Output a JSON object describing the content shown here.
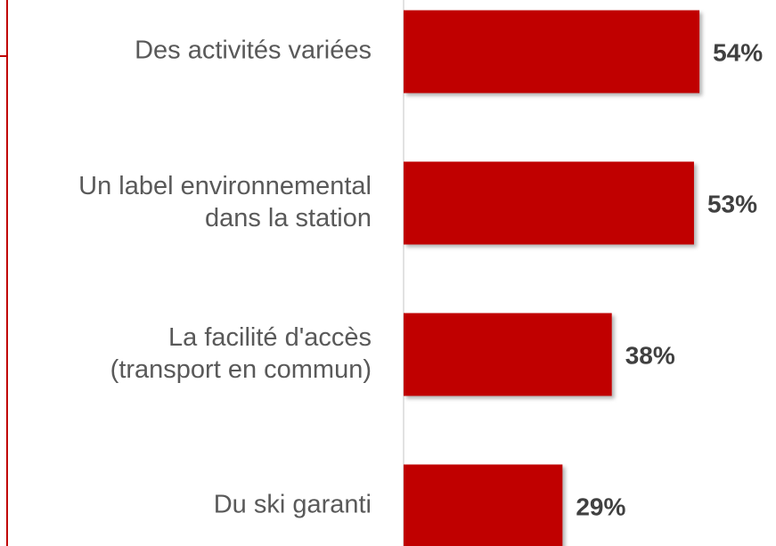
{
  "chart_data": {
    "type": "bar",
    "orientation": "horizontal",
    "categories": [
      "Des activités variées",
      "Un label environnemental\ndans la station",
      "La facilité d'accès\n(transport en commun)",
      "Du ski garanti"
    ],
    "values": [
      54,
      53,
      38,
      29
    ],
    "value_labels": [
      "54%",
      "53%",
      "38%",
      "29%"
    ],
    "color": "#c00000"
  }
}
